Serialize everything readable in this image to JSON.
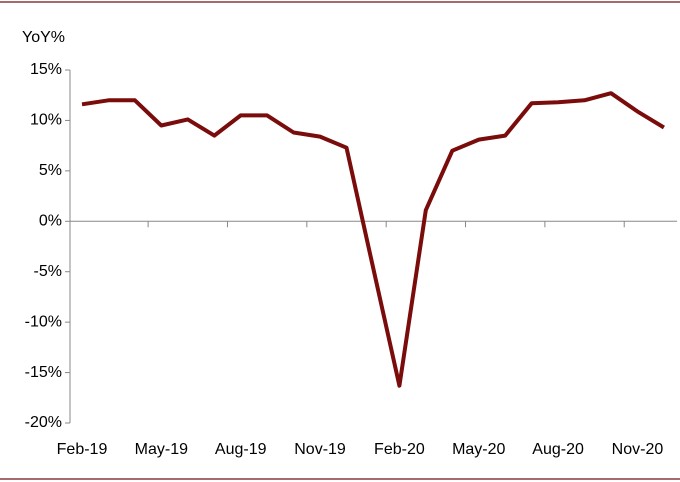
{
  "chart_data": {
    "type": "line",
    "y_label": "YoY%",
    "categories": [
      "Feb-19",
      null,
      null,
      "May-19",
      null,
      null,
      "Aug-19",
      null,
      null,
      "Nov-19",
      null,
      null,
      "Feb-20",
      null,
      null,
      "May-20",
      null,
      null,
      "Aug-20",
      null,
      null,
      "Nov-20",
      null
    ],
    "series": [
      {
        "name": "YoY",
        "color": "#7a0c0c",
        "values": [
          11.6,
          12.0,
          12.0,
          9.5,
          10.1,
          8.5,
          10.5,
          10.5,
          8.8,
          8.4,
          7.3,
          -4.5,
          -16.3,
          1.1,
          7.0,
          8.1,
          8.5,
          11.7,
          11.8,
          12.0,
          12.7,
          10.9,
          9.3
        ]
      }
    ],
    "ylim": [
      -20,
      15
    ],
    "yticks": [
      {
        "value": 15,
        "label": "15%"
      },
      {
        "value": 10,
        "label": "10%"
      },
      {
        "value": 5,
        "label": "5%"
      },
      {
        "value": 0,
        "label": "0%"
      },
      {
        "value": -5,
        "label": "-5%"
      },
      {
        "value": -10,
        "label": "-10%"
      },
      {
        "value": -15,
        "label": "-15%"
      },
      {
        "value": -20,
        "label": "-20%"
      }
    ]
  }
}
